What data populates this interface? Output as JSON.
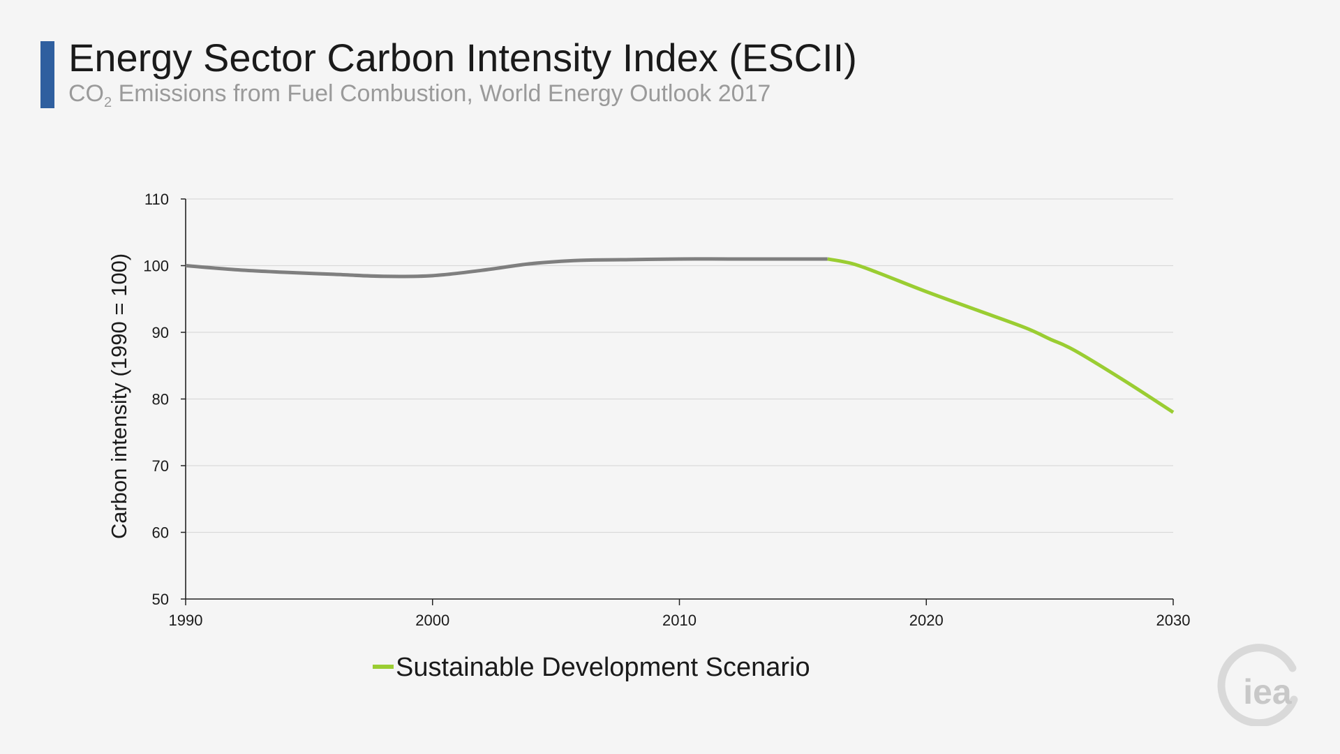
{
  "header": {
    "title": "Energy Sector Carbon Intensity Index (ESCII)",
    "subtitle_prefix": "CO",
    "subtitle_sub": "2",
    "subtitle_suffix": " Emissions from Fuel Combustion, World Energy Outlook 2017"
  },
  "logo": {
    "text": "iea"
  },
  "colors": {
    "accent": "#2f5f9f",
    "historical": "#7f7f7f",
    "scenario": "#9acd32",
    "grid": "#d9d9d9",
    "axis": "#222222"
  },
  "chart_data": {
    "type": "line",
    "ylabel": "Carbon intensity (1990 = 100)",
    "xlabel": "",
    "xlim": [
      1990,
      2030
    ],
    "ylim": [
      50,
      110
    ],
    "x_ticks": [
      1990,
      2000,
      2010,
      2020,
      2030
    ],
    "y_ticks": [
      50,
      60,
      70,
      80,
      90,
      100,
      110
    ],
    "grid": true,
    "legend_position": "bottom-center",
    "series": [
      {
        "key": "historical",
        "color": "#7f7f7f",
        "x": [
          1990,
          1992,
          1994,
          1996,
          1998,
          2000,
          2002,
          2004,
          2006,
          2008,
          2010,
          2012,
          2014,
          2016
        ],
        "y": [
          100.0,
          99.4,
          99.0,
          98.7,
          98.4,
          98.5,
          99.3,
          100.3,
          100.8,
          100.9,
          101.0,
          101.0,
          101.0,
          101.0
        ]
      },
      {
        "key": "sds",
        "name": "Sustainable Development Scenario",
        "color": "#9acd32",
        "x": [
          2016,
          2017,
          2018,
          2020,
          2022,
          2024,
          2025,
          2026,
          2028,
          2030
        ],
        "y": [
          101.0,
          100.3,
          99.0,
          96.1,
          93.4,
          90.7,
          89.0,
          87.3,
          82.8,
          78.0
        ]
      }
    ]
  }
}
